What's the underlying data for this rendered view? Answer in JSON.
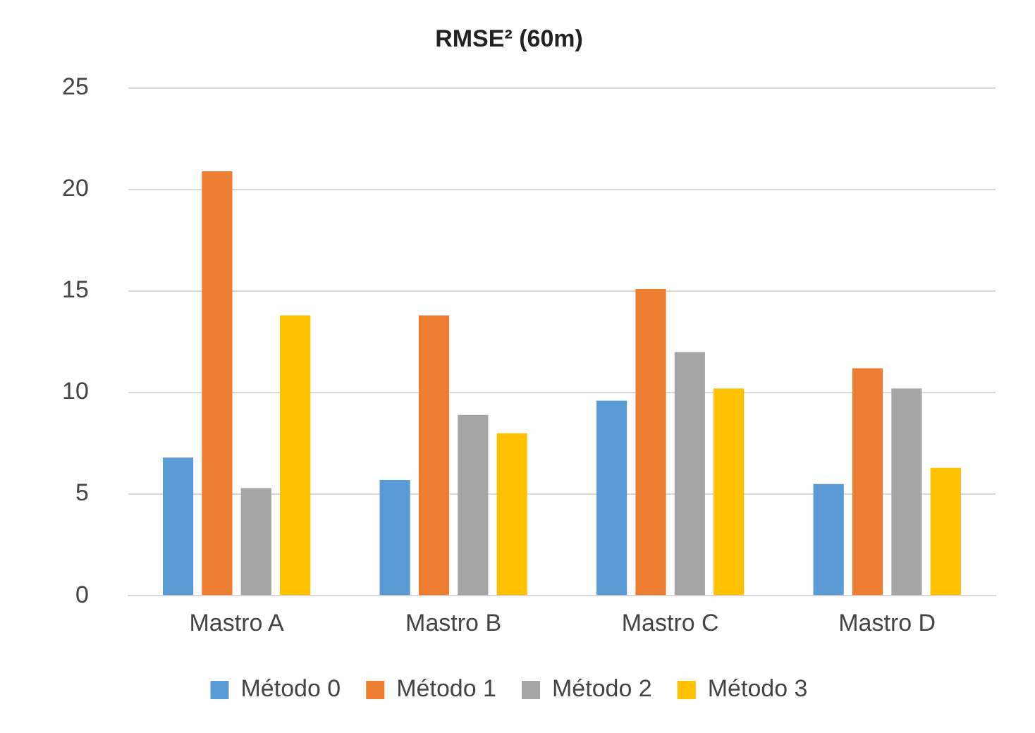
{
  "chart_data": {
    "type": "bar",
    "title": "RMSE² (60m)",
    "categories": [
      "Mastro A",
      "Mastro B",
      "Mastro C",
      "Mastro D"
    ],
    "series": [
      {
        "name": "Método 0",
        "color": "#5b9bd5",
        "values": [
          6.8,
          5.7,
          9.6,
          5.5
        ]
      },
      {
        "name": "Método 1",
        "color": "#ed7d31",
        "values": [
          20.9,
          13.8,
          15.1,
          11.2
        ]
      },
      {
        "name": "Método 2",
        "color": "#a5a5a5",
        "values": [
          5.3,
          8.9,
          12.0,
          10.2
        ]
      },
      {
        "name": "Método 3",
        "color": "#ffc000",
        "values": [
          13.8,
          8.0,
          10.2,
          6.3
        ]
      }
    ],
    "ylim": [
      0,
      25
    ],
    "yticks": [
      0,
      5,
      10,
      15,
      20,
      25
    ],
    "grid": "y",
    "legend": "bottom"
  }
}
